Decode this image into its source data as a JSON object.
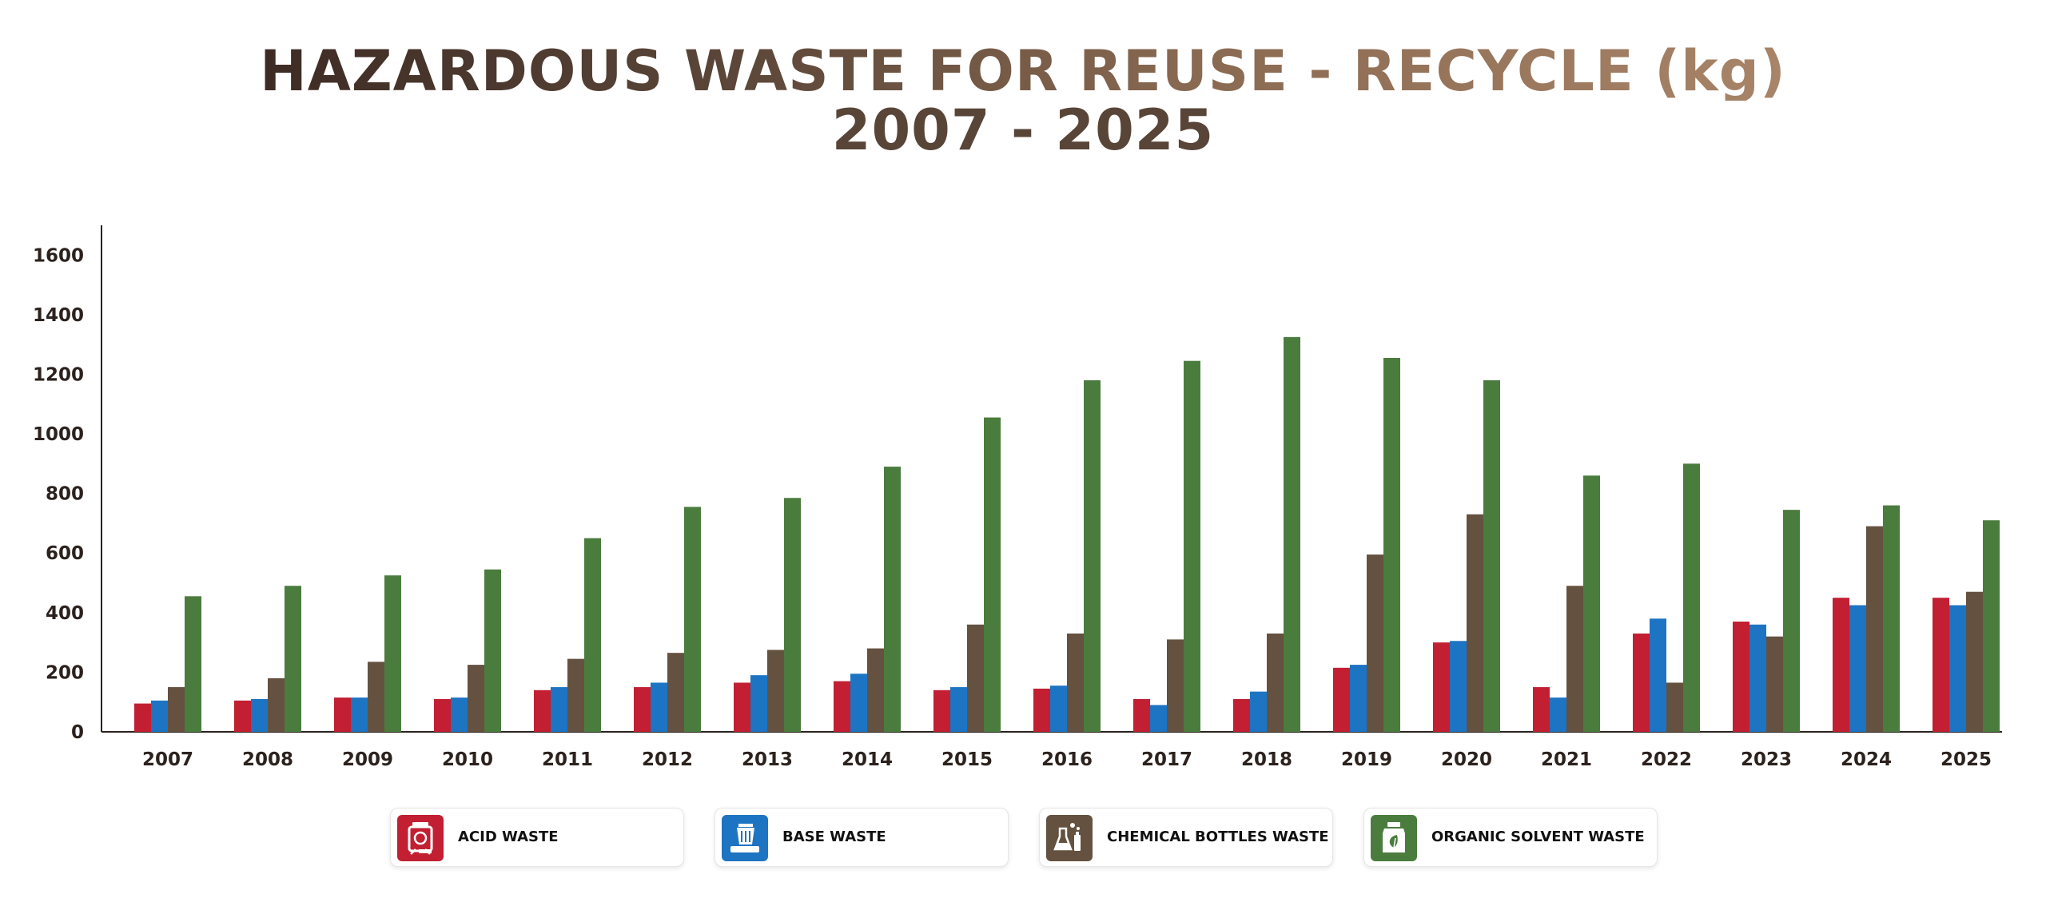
{
  "title": {
    "line1": "HAZARDOUS WASTE FOR REUSE - RECYCLE (kg)",
    "line2": "2007 - 2025"
  },
  "colors": {
    "acid": "#c21f32",
    "base": "#1d74c2",
    "bottles": "#64513f",
    "solvent": "#4a7c3e",
    "axis": "#2b211d"
  },
  "legend": [
    {
      "label": "ACID WASTE",
      "color": "#c21f32",
      "icon": "acid-container-icon"
    },
    {
      "label": "BASE WASTE",
      "color": "#1d74c2",
      "icon": "base-bin-icon"
    },
    {
      "label": "CHEMICAL BOTTLES WASTE",
      "color": "#64513f",
      "icon": "chemical-bottles-icon"
    },
    {
      "label": "ORGANIC SOLVENT WASTE",
      "color": "#4a7c3e",
      "icon": "solvent-jar-icon"
    }
  ],
  "chart_data": {
    "type": "bar",
    "title": "HAZARDOUS WASTE FOR REUSE - RECYCLE (kg) 2007 - 2025",
    "xlabel": "",
    "ylabel": "",
    "ylim": [
      0,
      1700
    ],
    "yticks": [
      0,
      200,
      400,
      600,
      800,
      1000,
      1200,
      1400,
      1600
    ],
    "grid": false,
    "legend_position": "bottom",
    "categories": [
      "2007",
      "2008",
      "2009",
      "2010",
      "2011",
      "2012",
      "2013",
      "2014",
      "2015",
      "2016",
      "2017",
      "2018",
      "2019",
      "2020",
      "2021",
      "2022",
      "2023",
      "2024",
      "2025"
    ],
    "series": [
      {
        "name": "ACID WASTE",
        "color": "#c21f32",
        "values": [
          95,
          105,
          115,
          110,
          140,
          150,
          165,
          170,
          140,
          145,
          110,
          110,
          215,
          300,
          150,
          330,
          370,
          450,
          450
        ]
      },
      {
        "name": "BASE WASTE",
        "color": "#1d74c2",
        "values": [
          105,
          110,
          115,
          115,
          150,
          165,
          190,
          195,
          150,
          155,
          90,
          135,
          225,
          305,
          115,
          380,
          360,
          425,
          425
        ]
      },
      {
        "name": "CHEMICAL BOTTLES WASTE",
        "color": "#64513f",
        "values": [
          150,
          180,
          235,
          225,
          245,
          265,
          275,
          280,
          360,
          330,
          310,
          330,
          595,
          730,
          490,
          165,
          320,
          690,
          470
        ]
      },
      {
        "name": "ORGANIC SOLVENT WASTE",
        "color": "#4a7c3e",
        "values": [
          455,
          490,
          525,
          545,
          650,
          755,
          785,
          890,
          1055,
          1180,
          1245,
          1325,
          1255,
          1180,
          860,
          900,
          745,
          760,
          710
        ]
      }
    ]
  }
}
